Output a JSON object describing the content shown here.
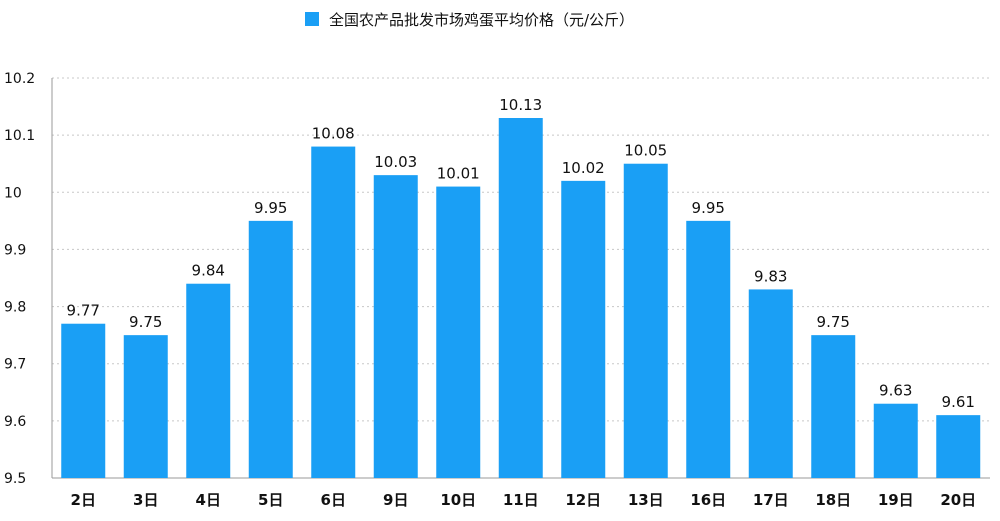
{
  "chart_data": {
    "type": "bar",
    "title": "",
    "xlabel": "",
    "ylabel": "",
    "legend": {
      "position": "top-center",
      "entries": [
        "全国农产品批发市场鸡蛋平均价格（元/公斤）"
      ]
    },
    "series": [
      {
        "name": "全国农产品批发市场鸡蛋平均价格（元/公斤）",
        "color": "#1a9ff5",
        "values": [
          9.77,
          9.75,
          9.84,
          9.95,
          10.08,
          10.03,
          10.01,
          10.13,
          10.02,
          10.05,
          9.95,
          9.83,
          9.75,
          9.63,
          9.61
        ]
      }
    ],
    "categories": [
      "2日",
      "3日",
      "4日",
      "5日",
      "6日",
      "9日",
      "10日",
      "11日",
      "12日",
      "13日",
      "16日",
      "17日",
      "18日",
      "19日",
      "20日"
    ],
    "ylim": [
      9.5,
      10.2
    ],
    "yticks": [
      "9.5",
      "9.6",
      "9.7",
      "9.8",
      "9.9",
      "10",
      "10.1",
      "10.2"
    ],
    "grid": true,
    "data_labels": [
      "9.77",
      "9.75",
      "9.84",
      "9.95",
      "10.08",
      "10.03",
      "10.01",
      "10.13",
      "10.02",
      "10.05",
      "9.95",
      "9.83",
      "9.75",
      "9.63",
      "9.61"
    ]
  }
}
